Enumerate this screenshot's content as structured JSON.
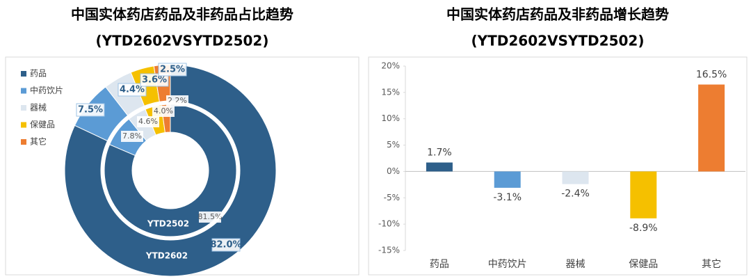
{
  "chart_data": [
    {
      "type": "donut",
      "title": "中国实体药店药品及非药品占比趋势",
      "subtitle": "(YTD2602VSYTD2502)",
      "categories": [
        "药品",
        "中药饮片",
        "器械",
        "保健品",
        "其它"
      ],
      "colors": [
        "#2e5f8a",
        "#5b9bd5",
        "#dde6ef",
        "#f5c000",
        "#ed7d31"
      ],
      "legend": "top-left",
      "series": [
        {
          "name": "YTD2602",
          "values": [
            82.0,
            7.5,
            4.4,
            3.6,
            2.5
          ],
          "value_labels": [
            "82.0%",
            "7.5%",
            "4.4%",
            "3.6%",
            "2.5%"
          ]
        },
        {
          "name": "YTD2502",
          "values": [
            81.5,
            7.8,
            4.6,
            4.0,
            2.2
          ],
          "value_labels": [
            "81.5%",
            "7.8%",
            "4.6%",
            "4.0%",
            "2.2%"
          ]
        }
      ]
    },
    {
      "type": "bar",
      "title": "中国实体药店药品及非药品增长趋势",
      "subtitle": "(YTD2602VSYTD2502)",
      "categories": [
        "药品",
        "中药饮片",
        "器械",
        "保健品",
        "其它"
      ],
      "values": [
        1.7,
        -3.1,
        -2.4,
        -8.9,
        16.5
      ],
      "value_labels": [
        "1.7%",
        "-3.1%",
        "-2.4%",
        "-8.9%",
        "16.5%"
      ],
      "colors": [
        "#2e5f8a",
        "#5b9bd5",
        "#dde6ef",
        "#f5c000",
        "#ed7d31"
      ],
      "ylim": [
        -15,
        20
      ],
      "yticks": [
        {
          "value": -15,
          "label": "-15%"
        },
        {
          "value": -10,
          "label": "-10%"
        },
        {
          "value": -5,
          "label": "-5%"
        },
        {
          "value": 0,
          "label": "0%"
        },
        {
          "value": 5,
          "label": "5%"
        },
        {
          "value": 10,
          "label": "10%"
        },
        {
          "value": 15,
          "label": "15%"
        },
        {
          "value": 20,
          "label": "20%"
        }
      ]
    }
  ]
}
